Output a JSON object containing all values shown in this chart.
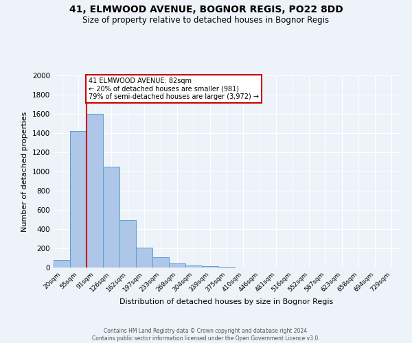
{
  "title_line1": "41, ELMWOOD AVENUE, BOGNOR REGIS, PO22 8DD",
  "title_line2": "Size of property relative to detached houses in Bognor Regis",
  "xlabel": "Distribution of detached houses by size in Bognor Regis",
  "ylabel": "Number of detached properties",
  "footnote": "Contains HM Land Registry data © Crown copyright and database right 2024.\nContains public sector information licensed under the Open Government Licence v3.0.",
  "bin_labels": [
    "20sqm",
    "55sqm",
    "91sqm",
    "126sqm",
    "162sqm",
    "197sqm",
    "233sqm",
    "268sqm",
    "304sqm",
    "339sqm",
    "375sqm",
    "410sqm",
    "446sqm",
    "481sqm",
    "516sqm",
    "552sqm",
    "587sqm",
    "623sqm",
    "658sqm",
    "694sqm",
    "729sqm"
  ],
  "bar_values": [
    80,
    1420,
    1600,
    1050,
    490,
    205,
    105,
    45,
    25,
    15,
    10,
    0,
    0,
    0,
    0,
    0,
    0,
    0,
    0,
    0,
    0
  ],
  "bar_color": "#aec6e8",
  "bar_edge_color": "#5a9fd4",
  "vline_color": "#cc0000",
  "ylim": [
    0,
    2000
  ],
  "yticks": [
    0,
    200,
    400,
    600,
    800,
    1000,
    1200,
    1400,
    1600,
    1800,
    2000
  ],
  "annotation_text": "41 ELMWOOD AVENUE: 82sqm\n← 20% of detached houses are smaller (981)\n79% of semi-detached houses are larger (3,972) →",
  "annotation_box_color": "#ffffff",
  "annotation_box_edge": "#cc0000",
  "bg_color": "#eef2f9",
  "plot_bg_color": "#eef2f9",
  "grid_color": "#ffffff",
  "title1_fontsize": 10,
  "title2_fontsize": 8.5,
  "ylabel_fontsize": 8,
  "xlabel_fontsize": 8,
  "tick_fontsize": 7.5,
  "xtick_fontsize": 6.5,
  "annot_fontsize": 7,
  "footnote_fontsize": 5.5
}
